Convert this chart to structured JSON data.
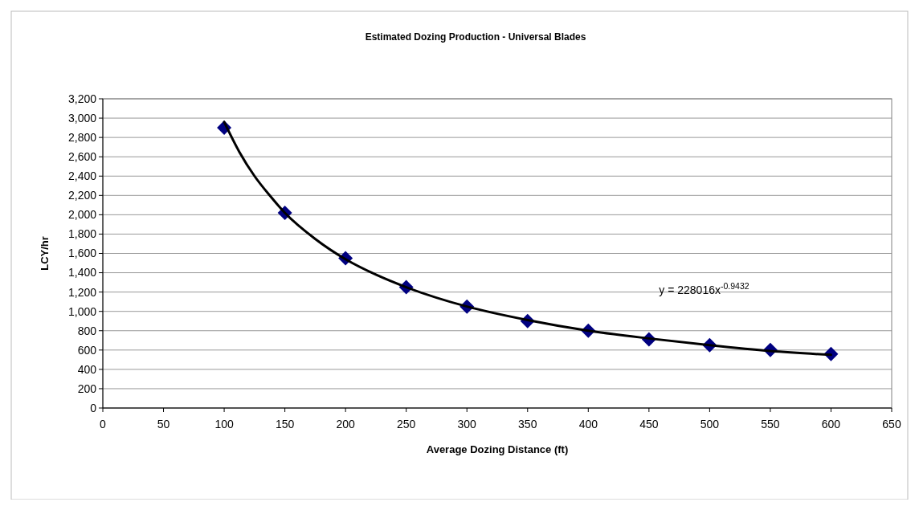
{
  "chart_data": {
    "type": "scatter",
    "title": "Estimated Dozing Production - Universal Blades",
    "xlabel": "Average Dozing Distance (ft)",
    "ylabel": "LCY/hr",
    "xlim": [
      0,
      650
    ],
    "xticks": [
      0,
      50,
      100,
      150,
      200,
      250,
      300,
      350,
      400,
      450,
      500,
      550,
      600,
      650
    ],
    "ylim": [
      0,
      3200
    ],
    "yticks": [
      {
        "value": 0,
        "label": "0"
      },
      {
        "value": 200,
        "label": "200"
      },
      {
        "value": 400,
        "label": "400"
      },
      {
        "value": 600,
        "label": "600"
      },
      {
        "value": 800,
        "label": "800"
      },
      {
        "value": 1000,
        "label": "1,000"
      },
      {
        "value": 1200,
        "label": "1,200"
      },
      {
        "value": 1400,
        "label": "1,400"
      },
      {
        "value": 1600,
        "label": "1,600"
      },
      {
        "value": 1800,
        "label": "1,800"
      },
      {
        "value": 2000,
        "label": "2,000"
      },
      {
        "value": 2200,
        "label": "2,200"
      },
      {
        "value": 2400,
        "label": "2,400"
      },
      {
        "value": 2600,
        "label": "2,600"
      },
      {
        "value": 2800,
        "label": "2,800"
      },
      {
        "value": 3000,
        "label": "3,000"
      },
      {
        "value": 3200,
        "label": "3,200"
      }
    ],
    "grid": "y",
    "marker": "diamond",
    "series": [
      {
        "color": "#000080",
        "x": [
          100,
          150,
          200,
          250,
          300,
          350,
          400,
          450,
          500,
          550,
          600
        ],
        "values": [
          2900,
          2020,
          1550,
          1250,
          1050,
          900,
          800,
          710,
          650,
          600,
          560
        ]
      },
      {
        "type": "line",
        "color": "#000000",
        "line_style": "solid",
        "marker": "none",
        "x": [
          100,
          112.5,
          125,
          137.5,
          150,
          175,
          200,
          225,
          250,
          300,
          350,
          400,
          450,
          500,
          550,
          600
        ],
        "values": [
          2960,
          2650,
          2400,
          2200,
          2020,
          1750,
          1540,
          1380,
          1250,
          1050,
          910,
          800,
          720,
          650,
          590,
          550
        ]
      }
    ],
    "annotations": [
      "y = 228016x$^{-0.9432}$"
    ]
  }
}
